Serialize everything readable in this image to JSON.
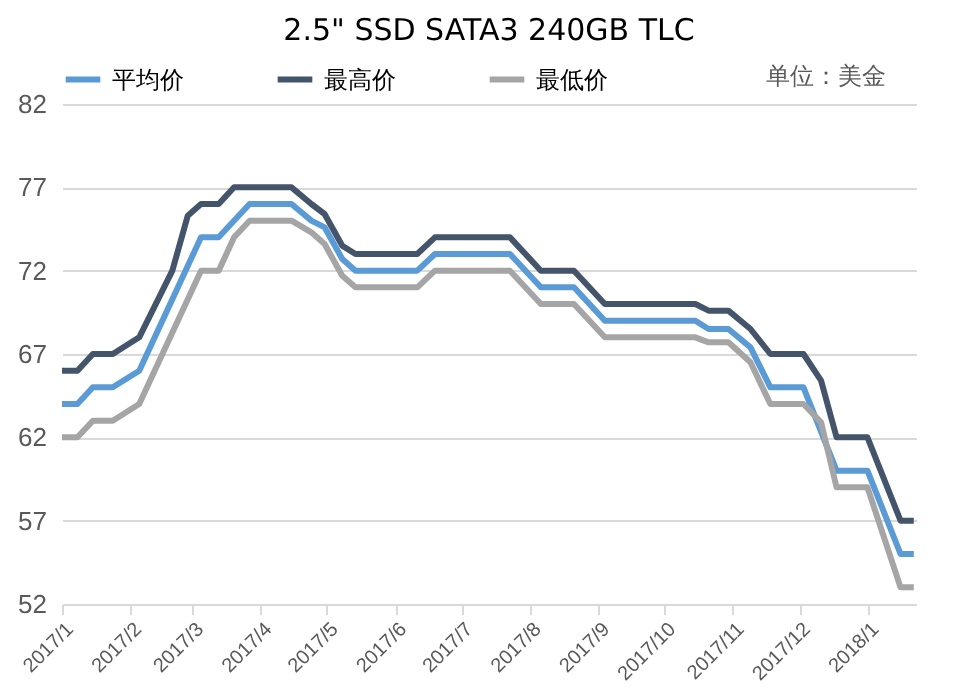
{
  "chart_data": {
    "type": "line",
    "title": "2.5\" SSD SATA3 240GB TLC",
    "annotations": [
      "单位：美金"
    ],
    "xlim": [
      "2017-01-01",
      "2018-01-23"
    ],
    "xticks": [
      {
        "value": "2017-01-01",
        "label": "2017/1"
      },
      {
        "value": "2017-02-01",
        "label": "2017/2"
      },
      {
        "value": "2017-03-01",
        "label": "2017/3"
      },
      {
        "value": "2017-04-01",
        "label": "2017/4"
      },
      {
        "value": "2017-05-01",
        "label": "2017/5"
      },
      {
        "value": "2017-06-01",
        "label": "2017/6"
      },
      {
        "value": "2017-07-01",
        "label": "2017/7"
      },
      {
        "value": "2017-08-01",
        "label": "2017/8"
      },
      {
        "value": "2017-09-01",
        "label": "2017/9"
      },
      {
        "value": "2017-10-01",
        "label": "2017/10"
      },
      {
        "value": "2017-11-01",
        "label": "2017/11"
      },
      {
        "value": "2017-12-01",
        "label": "2017/12"
      },
      {
        "value": "2018-01-01",
        "label": "2018/1"
      }
    ],
    "ylim": [
      52,
      82
    ],
    "yticks": [
      52,
      57,
      62,
      67,
      72,
      77,
      82
    ],
    "grid": "y",
    "legend": "top",
    "marker": "none",
    "line_style": "solid",
    "series": [
      {
        "name": "平均价",
        "color": "#5b9bd5",
        "x": [
          "2017-01-01",
          "2017-01-08",
          "2017-01-15",
          "2017-01-24",
          "2017-02-05",
          "2017-03-05",
          "2017-03-13",
          "2017-03-27",
          "2017-04-15",
          "2017-04-24",
          "2017-04-30",
          "2017-05-08",
          "2017-05-14",
          "2017-06-11",
          "2017-06-19",
          "2017-07-23",
          "2017-08-06",
          "2017-08-21",
          "2017-09-04",
          "2017-10-15",
          "2017-10-21",
          "2017-10-30",
          "2017-11-09",
          "2017-11-18",
          "2017-12-03",
          "2017-12-18",
          "2018-01-01",
          "2018-01-16",
          "2018-01-22"
        ],
        "values": [
          64,
          64,
          65,
          65,
          66,
          74,
          74,
          76,
          76,
          75,
          74.6,
          72.7,
          72,
          72,
          73,
          73,
          71,
          71,
          69,
          69,
          68.5,
          68.5,
          67.4,
          65,
          65,
          60,
          60,
          55,
          55
        ]
      },
      {
        "name": "最高价",
        "color": "#44546a",
        "x": [
          "2017-01-01",
          "2017-01-08",
          "2017-01-15",
          "2017-01-24",
          "2017-02-05",
          "2017-02-20",
          "2017-02-27",
          "2017-03-05",
          "2017-03-13",
          "2017-03-20",
          "2017-04-15",
          "2017-04-24",
          "2017-04-30",
          "2017-05-08",
          "2017-05-14",
          "2017-06-11",
          "2017-06-19",
          "2017-07-23",
          "2017-08-06",
          "2017-08-21",
          "2017-09-04",
          "2017-10-15",
          "2017-10-21",
          "2017-10-30",
          "2017-11-09",
          "2017-11-18",
          "2017-12-03",
          "2017-12-11",
          "2017-12-18",
          "2018-01-01",
          "2018-01-16",
          "2018-01-22"
        ],
        "values": [
          66,
          66,
          67,
          67,
          68,
          72,
          75.3,
          76,
          76,
          77,
          77,
          76,
          75.4,
          73.5,
          73,
          73,
          74,
          74,
          72,
          72,
          70,
          70,
          69.6,
          69.6,
          68.5,
          67,
          67,
          65.4,
          62,
          62,
          57,
          57
        ]
      },
      {
        "name": "最低价",
        "color": "#a5a5a5",
        "x": [
          "2017-01-01",
          "2017-01-08",
          "2017-01-15",
          "2017-01-24",
          "2017-02-05",
          "2017-03-05",
          "2017-03-13",
          "2017-03-20",
          "2017-03-27",
          "2017-04-15",
          "2017-04-24",
          "2017-04-30",
          "2017-05-08",
          "2017-05-14",
          "2017-06-11",
          "2017-06-19",
          "2017-07-23",
          "2017-08-06",
          "2017-08-21",
          "2017-09-04",
          "2017-10-15",
          "2017-10-21",
          "2017-10-30",
          "2017-11-09",
          "2017-11-18",
          "2017-12-03",
          "2017-12-11",
          "2017-12-18",
          "2018-01-01",
          "2018-01-16",
          "2018-01-22"
        ],
        "values": [
          62,
          62,
          63,
          63,
          64,
          72,
          72,
          74,
          75,
          75,
          74.3,
          73.6,
          71.7,
          71,
          71,
          72,
          72,
          70,
          70,
          68,
          68,
          67.7,
          67.7,
          66.5,
          64,
          64,
          62.9,
          59,
          59,
          53,
          53
        ]
      }
    ]
  }
}
